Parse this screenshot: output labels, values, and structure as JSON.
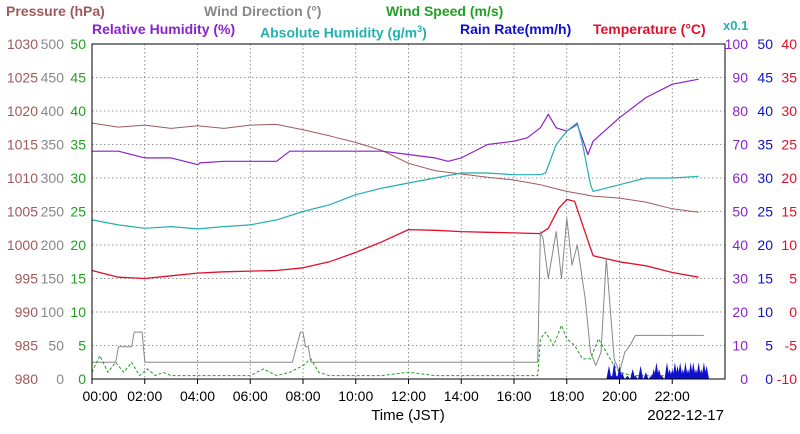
{
  "legend": {
    "pressure": "Pressure (hPa)",
    "wind_dir": "Wind Direction (°)",
    "wind_speed": "Wind Speed (m/s)",
    "rh": "Relative Humidity (%)",
    "ah_pre": "Absolute Humidity (g/m",
    "ah_sup": "3",
    "ah_post": ")",
    "rain": "Rain Rate(mm/h)",
    "temp": "Temperature (°C)",
    "x01": "x0.1"
  },
  "colors": {
    "pressure": "#a05a5a",
    "wind_dir": "#888888",
    "wind_speed": "#22a022",
    "rh": "#8a22cc",
    "ah": "#22b0b0",
    "rain": "#1010cc",
    "temp": "#e0102a"
  },
  "chart_data": {
    "type": "line",
    "xlabel": "Time (JST)",
    "date": "2022-12-17",
    "x_range": [
      0,
      24
    ],
    "grid": true,
    "x_ticks": [
      "00:00",
      "02:00",
      "04:00",
      "06:00",
      "08:00",
      "10:00",
      "12:00",
      "14:00",
      "16:00",
      "18:00",
      "20:00",
      "22:00"
    ],
    "axes": {
      "pressure": {
        "ticks": [
          "1030",
          "1025",
          "1020",
          "1015",
          "1010",
          "1005",
          "1000",
          "995",
          "990",
          "985",
          "980"
        ],
        "range": [
          980,
          1030
        ]
      },
      "wind_dir": {
        "ticks": [
          "500",
          "450",
          "400",
          "350",
          "300",
          "250",
          "200",
          "150",
          "100",
          "50",
          "0"
        ],
        "range": [
          0,
          500
        ]
      },
      "wind_speed": {
        "ticks": [
          "50",
          "45",
          "40",
          "35",
          "30",
          "25",
          "20",
          "15",
          "10",
          "5",
          "0"
        ],
        "range": [
          0,
          50
        ]
      },
      "rh": {
        "ticks": [
          "100",
          "90",
          "80",
          "70",
          "60",
          "50",
          "40",
          "30",
          "20",
          "10",
          "0"
        ],
        "range": [
          0,
          100
        ]
      },
      "rain": {
        "ticks": [
          "50",
          "45",
          "40",
          "35",
          "30",
          "25",
          "20",
          "15",
          "10",
          "5",
          "0"
        ],
        "range": [
          0,
          50
        ]
      },
      "temp": {
        "ticks": [
          "40",
          "35",
          "30",
          "25",
          "20",
          "15",
          "10",
          "5",
          "0",
          "-5",
          "-10"
        ],
        "range": [
          -10,
          40
        ]
      }
    },
    "series": [
      {
        "name": "Pressure (hPa)",
        "axis": "pressure",
        "x": [
          0,
          1,
          2,
          3,
          4,
          5,
          6,
          7,
          8,
          9,
          10,
          11,
          12,
          13,
          14,
          15,
          16,
          17,
          17.5,
          18,
          19,
          20,
          21,
          22,
          23
        ],
        "values": [
          1018.2,
          1017.6,
          1017.9,
          1017.4,
          1017.8,
          1017.4,
          1017.9,
          1018.0,
          1017.2,
          1016.3,
          1015.3,
          1014.1,
          1012.2,
          1011.1,
          1010.6,
          1010.1,
          1009.7,
          1009.0,
          1008.5,
          1008.0,
          1007.3,
          1007.0,
          1006.4,
          1005.4,
          1004.9
        ]
      },
      {
        "name": "Relative Humidity (%)",
        "axis": "rh",
        "x": [
          0,
          1,
          2,
          3,
          4,
          4.1,
          5,
          6,
          7,
          7.5,
          8,
          9,
          10,
          11,
          12,
          13,
          13.5,
          14,
          15,
          16,
          16.5,
          17,
          17.3,
          17.6,
          18,
          18.4,
          18.8,
          19,
          20,
          21,
          22,
          23
        ],
        "values": [
          68,
          68,
          66,
          66,
          64,
          64.5,
          65,
          65,
          65,
          68,
          68,
          68,
          68,
          68,
          67,
          66,
          65,
          66,
          70,
          71,
          72,
          75,
          79,
          75,
          74,
          76,
          67,
          71,
          78,
          84,
          88,
          89.5
        ]
      },
      {
        "name": "Absolute Humidity (g/m3)",
        "axis": "rh",
        "x": [
          0,
          1,
          2,
          3,
          4,
          5,
          6,
          7,
          8,
          9,
          10,
          11,
          12,
          13,
          14,
          15,
          16,
          17,
          17.2,
          17.6,
          18,
          18.4,
          18.6,
          18.9,
          19,
          20,
          21,
          22,
          23
        ],
        "values": [
          47.5,
          46,
          45,
          45.5,
          44.8,
          45.5,
          46,
          47.5,
          50,
          52,
          55,
          57,
          58.5,
          60,
          61.5,
          61.5,
          61,
          61,
          61.5,
          70,
          74,
          76.5,
          70,
          58,
          56,
          58,
          60,
          60,
          60.5
        ]
      },
      {
        "name": "Temperature (°C)",
        "axis": "temp",
        "x": [
          0,
          1,
          2,
          3,
          4,
          5,
          6,
          7,
          8,
          9,
          10,
          11,
          12,
          13,
          14,
          15,
          16,
          17,
          17.3,
          17.7,
          18,
          18.3,
          18.6,
          19,
          20,
          21,
          22,
          23
        ],
        "values": [
          6.2,
          5.2,
          5.0,
          5.4,
          5.8,
          6.0,
          6.1,
          6.2,
          6.6,
          7.5,
          8.9,
          10.5,
          12.3,
          12.2,
          12.0,
          11.9,
          11.8,
          11.7,
          12.5,
          15.5,
          16.8,
          16.5,
          13.0,
          8.4,
          7.5,
          6.9,
          5.9,
          5.2
        ]
      },
      {
        "name": "Wind Direction (°)",
        "axis": "wind_dir",
        "x": [
          0,
          0.9,
          1,
          1.5,
          1.6,
          1.9,
          2.0,
          3,
          4,
          5,
          6,
          7.0,
          7.6,
          7.9,
          8.0,
          8.1,
          8.2,
          8.3,
          9,
          10,
          11,
          12,
          13,
          14,
          15,
          16,
          16.9,
          17.0,
          17.1,
          17.3,
          17.6,
          17.8,
          18.0,
          18.2,
          18.4,
          18.7,
          18.9,
          19.1,
          19.3,
          19.5,
          19.8,
          20.0,
          20.2,
          20.4,
          20.6,
          21,
          22,
          22.5,
          22.7,
          23.2
        ],
        "values": [
          25,
          25,
          48,
          48,
          70,
          70,
          25,
          25,
          25,
          25,
          25,
          25,
          25,
          70,
          70,
          48,
          48,
          25,
          25,
          25,
          25,
          25,
          25,
          25,
          25,
          25,
          25,
          220,
          210,
          150,
          220,
          150,
          240,
          170,
          200,
          120,
          40,
          20,
          40,
          180,
          30,
          10,
          40,
          50,
          65,
          65,
          65,
          65,
          65,
          65
        ]
      },
      {
        "name": "Wind Speed (m/s)",
        "axis": "wind_speed",
        "x": [
          0,
          0.3,
          0.6,
          0.9,
          1.2,
          1.5,
          1.8,
          2.1,
          2.4,
          2.7,
          3,
          4,
          5,
          6,
          6.5,
          7,
          7.5,
          8,
          8.3,
          8.6,
          9,
          10,
          11,
          12,
          13,
          14,
          15,
          16,
          16.9,
          17.0,
          17.2,
          17.5,
          17.8,
          18.0,
          18.3,
          18.6,
          18.9,
          19.2,
          19.5,
          19.8,
          20.0,
          20.5,
          21,
          22,
          23
        ],
        "values": [
          1,
          3.5,
          1,
          2.5,
          1,
          2.5,
          0.5,
          1.5,
          0.5,
          1,
          0.5,
          0.5,
          0.5,
          0.5,
          1.5,
          0.5,
          1,
          2,
          3,
          1,
          0.5,
          0.5,
          0.5,
          1,
          0.5,
          0.5,
          0.5,
          0.5,
          0.5,
          6,
          7,
          5,
          8,
          6,
          5,
          3,
          3,
          6,
          4,
          2,
          1,
          0.5,
          0.5,
          0.5,
          0.5
        ]
      },
      {
        "name": "Rain Rate(mm/h)",
        "axis": "rain",
        "x": [
          19.6,
          19.7,
          19.8,
          19.9,
          20.0,
          20.1,
          20.3,
          20.5,
          20.6,
          20.8,
          21.0,
          21.2,
          21.3,
          21.4,
          21.5,
          21.6,
          21.8,
          21.9,
          22.0,
          22.1,
          22.2,
          22.3,
          22.4,
          22.5,
          22.6,
          22.7,
          22.8,
          22.9,
          23.0,
          23.1,
          23.2,
          23.3
        ],
        "values": [
          2,
          0.5,
          2.5,
          0.5,
          2,
          1,
          0.5,
          1.5,
          0.5,
          2,
          1,
          0.5,
          1.5,
          2.5,
          1.5,
          0.5,
          2.5,
          1.5,
          1.5,
          2.5,
          2,
          2.5,
          1.5,
          2.5,
          1.5,
          2.5,
          2.5,
          1.5,
          2.5,
          1.5,
          2.5,
          2
        ]
      }
    ]
  }
}
